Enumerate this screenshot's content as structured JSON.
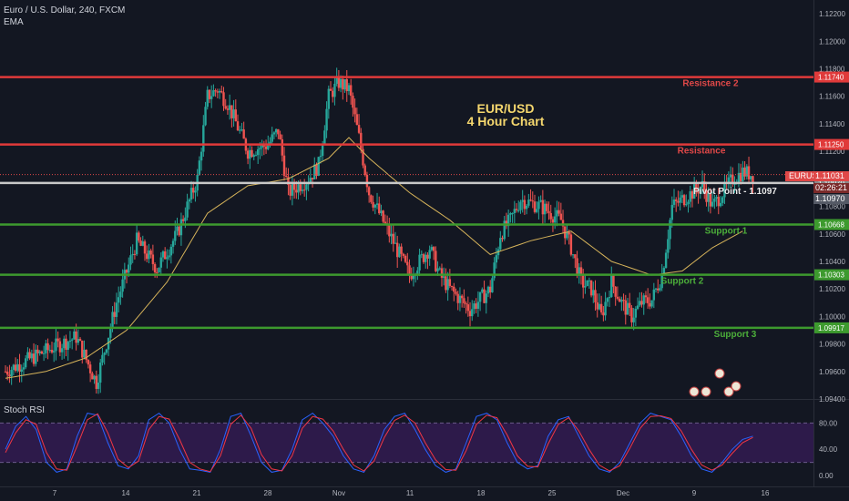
{
  "header": {
    "symbol_line": "Euro / U.S. Dollar, 240, FXCM",
    "indicator": "EMA",
    "rsi_label": "Stoch RSI"
  },
  "badges": {
    "symbol": "EURUSD",
    "price": "1.11031",
    "countdown": "02:26:21",
    "pivot_price": "1.10970"
  },
  "colors": {
    "background": "#131722",
    "resistance": "#e03a3a",
    "support": "#3d9a2e",
    "pivot": "#c8c8c8",
    "bull": "#26a69a",
    "bear": "#ef5350",
    "ema": "#d6b35a",
    "title": "#f5d76e",
    "stoch_k": "#2962ff",
    "stoch_d": "#f23645",
    "rsi_band": "#2d1a4a"
  },
  "chart_data": [
    {
      "type": "candlestick",
      "title": "EUR/USD",
      "subtitle": "4 Hour Chart",
      "ylim": [
        1.094,
        1.123
      ],
      "y_ticks": [
        "1.09400",
        "1.09600",
        "1.09800",
        "1.10000",
        "1.10200",
        "1.10400",
        "1.10600",
        "1.10800",
        "1.11000",
        "1.11200",
        "1.11400",
        "1.11600",
        "1.11800",
        "1.12000",
        "1.12200"
      ],
      "x_ticks": [
        "7",
        "14",
        "21",
        "28",
        "Nov",
        "11",
        "18",
        "25",
        "Dec",
        "9",
        "16"
      ],
      "levels": [
        {
          "name": "Resistance 2",
          "value": 1.1174,
          "label": "1.11740",
          "kind": "resistance"
        },
        {
          "name": "Resistance",
          "value": 1.1125,
          "label": "1.11250",
          "kind": "resistance"
        },
        {
          "name": "Pivot Point - 1.1097",
          "value": 1.1097,
          "label": "1.10970",
          "kind": "pivot"
        },
        {
          "name": "Support 1",
          "value": 1.10668,
          "label": "1.10668",
          "kind": "support"
        },
        {
          "name": "Support 2",
          "value": 1.10303,
          "label": "1.10303",
          "kind": "support"
        },
        {
          "name": "Support 3",
          "value": 1.09917,
          "label": "1.09917",
          "kind": "support"
        }
      ],
      "close_path": [
        [
          0,
          1.096
        ],
        [
          4,
          1.0975
        ],
        [
          7,
          1.0985
        ],
        [
          9,
          1.0952
        ],
        [
          11,
          1.101
        ],
        [
          13,
          1.1055
        ],
        [
          15,
          1.1035
        ],
        [
          17,
          1.106
        ],
        [
          19,
          1.11
        ],
        [
          20,
          1.116
        ],
        [
          21,
          1.1165
        ],
        [
          22,
          1.1155
        ],
        [
          24,
          1.112
        ],
        [
          26,
          1.1125
        ],
        [
          27,
          1.1135
        ],
        [
          28,
          1.109
        ],
        [
          29,
          1.1095
        ],
        [
          30,
          1.11
        ],
        [
          31,
          1.111
        ],
        [
          32,
          1.116
        ],
        [
          33,
          1.117
        ],
        [
          34,
          1.1165
        ],
        [
          35,
          1.113
        ],
        [
          36,
          1.109
        ],
        [
          37,
          1.1075
        ],
        [
          38,
          1.106
        ],
        [
          40,
          1.103
        ],
        [
          42,
          1.105
        ],
        [
          43,
          1.103
        ],
        [
          44,
          1.102
        ],
        [
          46,
          1.1005
        ],
        [
          48,
          1.102
        ],
        [
          49,
          1.106
        ],
        [
          50,
          1.107
        ],
        [
          51,
          1.1085
        ],
        [
          53,
          1.108
        ],
        [
          55,
          1.107
        ],
        [
          56,
          1.105
        ],
        [
          57,
          1.1025
        ],
        [
          58,
          1.102
        ],
        [
          59,
          1.1
        ],
        [
          60,
          1.1025
        ],
        [
          61,
          1.101
        ],
        [
          62,
          1.1
        ],
        [
          63,
          1.101
        ],
        [
          64,
          1.1012
        ],
        [
          65,
          1.103
        ],
        [
          66,
          1.108
        ],
        [
          67,
          1.1085
        ],
        [
          68,
          1.109
        ],
        [
          69,
          1.1095
        ],
        [
          70,
          1.108
        ],
        [
          71,
          1.109
        ],
        [
          72,
          1.11
        ],
        [
          73,
          1.1105
        ],
        [
          74,
          1.1103
        ]
      ],
      "ema_path": [
        [
          0,
          1.0955
        ],
        [
          4,
          1.096
        ],
        [
          8,
          1.097
        ],
        [
          12,
          1.099
        ],
        [
          16,
          1.1025
        ],
        [
          20,
          1.1075
        ],
        [
          24,
          1.1095
        ],
        [
          28,
          1.11
        ],
        [
          32,
          1.1115
        ],
        [
          34,
          1.113
        ],
        [
          36,
          1.1115
        ],
        [
          40,
          1.109
        ],
        [
          44,
          1.107
        ],
        [
          48,
          1.1045
        ],
        [
          52,
          1.1055
        ],
        [
          56,
          1.1062
        ],
        [
          60,
          1.104
        ],
        [
          64,
          1.103
        ],
        [
          67,
          1.1033
        ],
        [
          70,
          1.105
        ],
        [
          73,
          1.1062
        ]
      ]
    },
    {
      "type": "line",
      "title": "Stoch RSI",
      "ylim": [
        0,
        100
      ],
      "y_ticks": [
        "80.00",
        "40.00",
        "0.00"
      ],
      "band": [
        20,
        80
      ],
      "series": [
        {
          "values": [
            40,
            75,
            90,
            70,
            20,
            5,
            10,
            60,
            95,
            92,
            50,
            15,
            10,
            30,
            85,
            95,
            80,
            40,
            10,
            8,
            5,
            40,
            90,
            95,
            60,
            20,
            5,
            8,
            40,
            85,
            95,
            80,
            60,
            30,
            10,
            5,
            30,
            70,
            90,
            95,
            70,
            40,
            15,
            5,
            10,
            50,
            90,
            95,
            85,
            50,
            20,
            10,
            15,
            60,
            85,
            90,
            60,
            30,
            10,
            5,
            20,
            50,
            80,
            95,
            90,
            85,
            60,
            30,
            10,
            5,
            20,
            40,
            55,
            60
          ]
        },
        {
          "values": [
            35,
            65,
            85,
            78,
            35,
            10,
            8,
            45,
            85,
            94,
            65,
            25,
            12,
            22,
            70,
            90,
            86,
            55,
            20,
            10,
            6,
            30,
            78,
            92,
            72,
            32,
            10,
            7,
            30,
            72,
            90,
            86,
            68,
            40,
            16,
            7,
            22,
            58,
            84,
            92,
            80,
            50,
            24,
            9,
            8,
            38,
            78,
            92,
            88,
            62,
            30,
            14,
            13,
            48,
            78,
            88,
            68,
            40,
            16,
            7,
            15,
            42,
            72,
            90,
            91,
            87,
            68,
            40,
            16,
            8,
            16,
            34,
            50,
            58
          ]
        }
      ]
    }
  ]
}
